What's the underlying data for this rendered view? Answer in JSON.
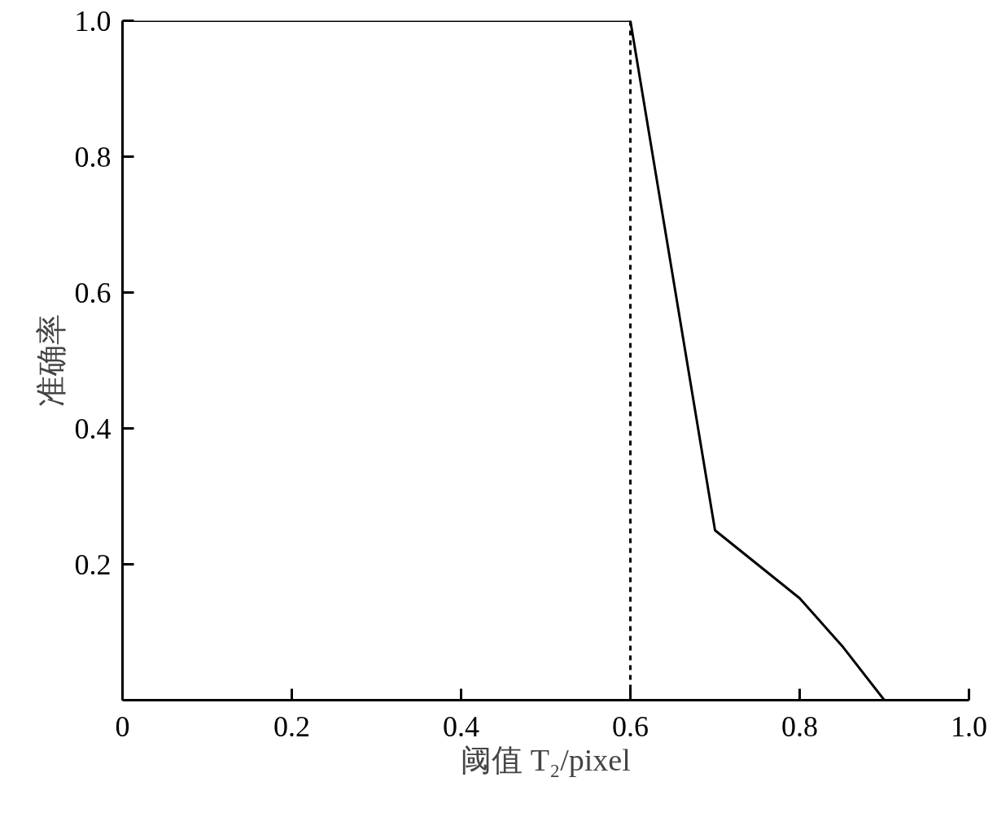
{
  "chart_data": {
    "type": "line",
    "xlabel": "阈值 T₂/pixel",
    "ylabel": "准确率",
    "x": [
      0,
      0.6,
      0.7,
      0.75,
      0.8,
      0.85,
      0.9
    ],
    "series": [
      {
        "color": "#000000",
        "values": [
          1,
          1,
          0.25,
          0.2,
          0.15,
          0.08,
          0
        ]
      }
    ],
    "xlim": [
      0,
      1.0
    ],
    "ylim": [
      0,
      1.0
    ],
    "xticks": [
      0,
      0.2,
      0.4,
      0.6,
      0.8,
      {
        "value": 1.0,
        "label": "1.0"
      }
    ],
    "yticks": [
      0.2,
      0.4,
      0.6,
      0.8,
      {
        "value": 1.0,
        "label": "1.0"
      }
    ],
    "ref_lines": [
      {
        "axis": "x",
        "value": 0.6,
        "color": "#000000",
        "line_style": "dashed"
      }
    ],
    "grid": false,
    "marker": "none",
    "line_style": "solid"
  }
}
